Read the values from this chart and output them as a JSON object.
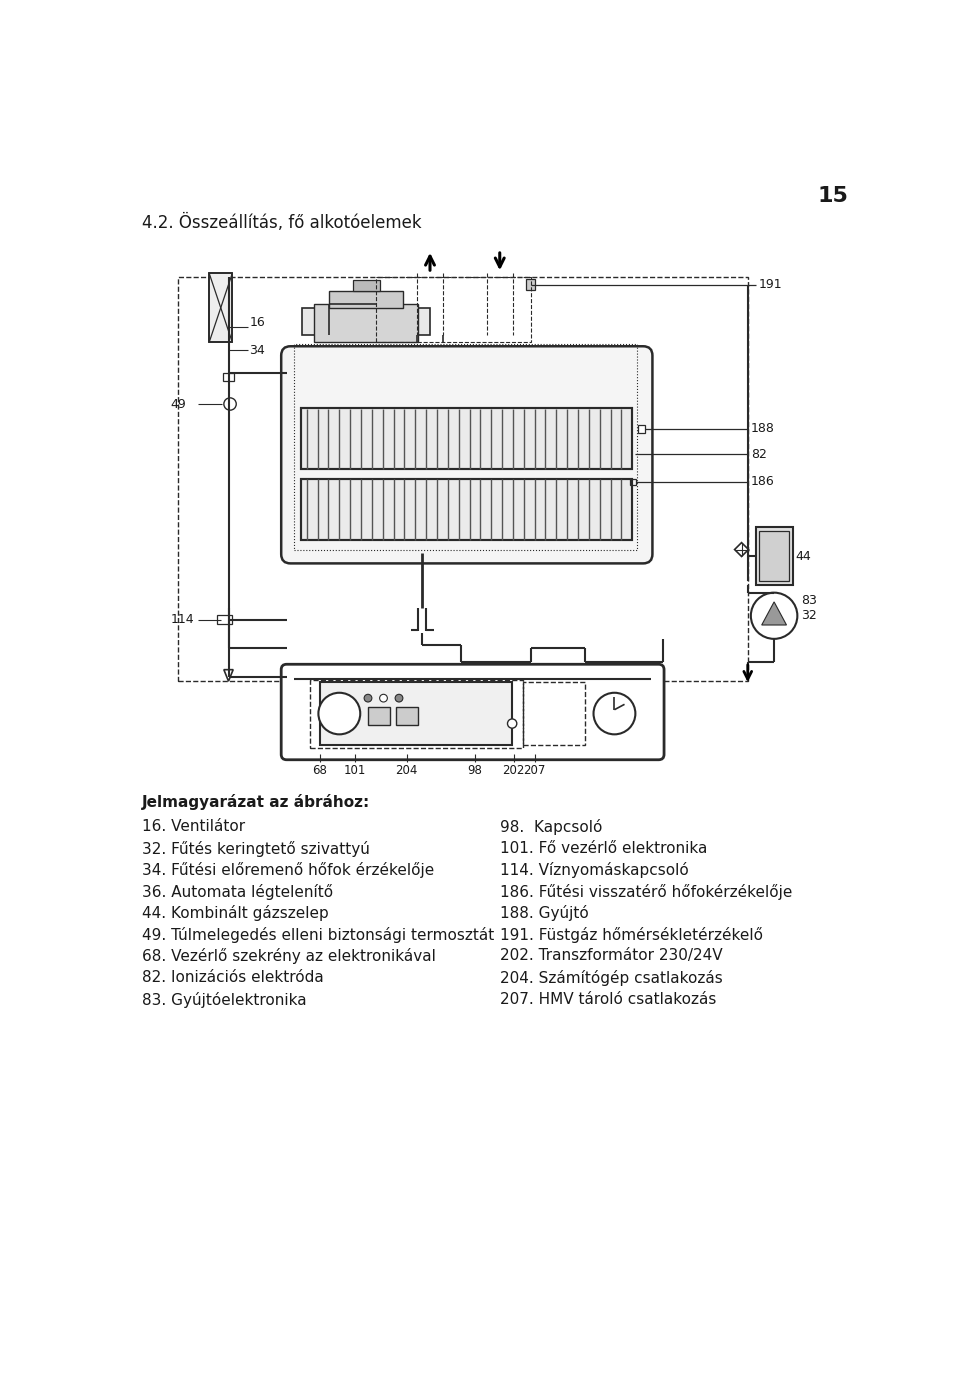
{
  "page_number": "15",
  "section_title": "4.2. Összeállítás, fő alkotóelemek",
  "legend_header": "Jelmagyarázat az ábrához:",
  "legend_left": [
    "16. Ventilátor",
    "32. Fűtés keringtető szivattyú",
    "34. Fűtési előremenő hőfok érzékelője",
    "36. Automata légtelenítő",
    "44. Kombinált gázszelep",
    "49. Túlmelegedés elleni biztonsági termosztát",
    "68. Vezérlő szekrény az elektronikával",
    "82. Ionizációs elektróda",
    "83. Gyújtóelektronika"
  ],
  "legend_right": [
    "98.  Kapcsoló",
    "101. Fő vezérlő elektronika",
    "114. Víznyomáskapcsoló",
    "186. Fűtési visszatérő hőfokérzékelője",
    "188. Gyújtó",
    "191. Füstgáz hőmérsékletérzékelő",
    "202. Transzformátor 230/24V",
    "204. Számítógép csatlakozás",
    "207. HMV tároló csatlakozás"
  ],
  "bg_color": "#ffffff",
  "text_color": "#1a1a1a",
  "diagram_line_color": "#2a2a2a",
  "label_fontsize": 9,
  "legend_fontsize": 11,
  "title_fontsize": 12
}
